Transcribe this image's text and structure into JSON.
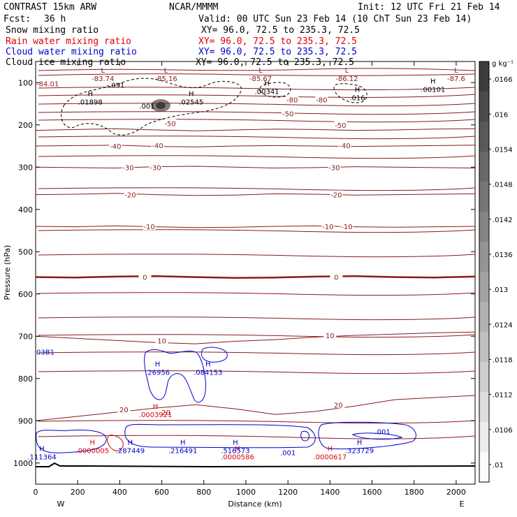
{
  "header": {
    "title": "CONTRAST 15km ARW",
    "source": "NCAR/MMMM",
    "init": "Init: 12 UTC Fri 21 Feb 14",
    "fcst_label": "Fcst:",
    "fcst_value": "36 h",
    "valid": "Valid: 00 UTC Sun 23 Feb 14 (10 ChT Sun 23 Feb 14)"
  },
  "fields": [
    {
      "name": "Snow mixing ratio",
      "xy": "XY=  96.0, 72.5 to 235.3, 72.5",
      "color": "#000000"
    },
    {
      "name": "Rain water mixing ratio",
      "xy": "XY=  96.0, 72.5 to 235.3, 72.5",
      "color": "#e00000"
    },
    {
      "name": "Cloud water mixing ratio",
      "xy": "XY=  96.0, 72.5 to 235.3, 72.5",
      "color": "#0000cc"
    },
    {
      "name": "Cloud ice mixing ratio",
      "xy": "XY=  96.0, 72.5 to 235.3, 72.5",
      "color": "#000000"
    }
  ],
  "colors": {
    "temperature": "#8b1a1a",
    "rain": "#e00000",
    "cloud": "#0000cc",
    "ice": "#000000"
  },
  "chart_data": {
    "type": "contour",
    "xlabel": "Distance (km)",
    "ylabel": "Pressure (hPa)",
    "xlim": [
      0,
      2090
    ],
    "ylim": [
      1050,
      50
    ],
    "x_ticks": [
      0,
      200,
      400,
      600,
      800,
      1000,
      1200,
      1400,
      1600,
      1800,
      2000
    ],
    "y_ticks": [
      100,
      200,
      300,
      400,
      500,
      600,
      700,
      800,
      900,
      1000
    ],
    "west_label": "W",
    "east_label": "E",
    "colorbar": {
      "units": "g kg⁻¹",
      "ticks": [
        0.01,
        0.0106,
        0.0112,
        0.0118,
        0.0124,
        0.013,
        0.0136,
        0.0142,
        0.0148,
        0.0154,
        0.016,
        0.0166
      ],
      "tick_labels": [
        ".01",
        ".0106",
        ".0112",
        ".0118",
        ".0124",
        ".013",
        ".0136",
        ".0142",
        ".0148",
        ".0154",
        ".016",
        ".0166"
      ],
      "min": 0.0097,
      "max": 0.0169
    },
    "temperature_contours": [
      {
        "label": "-50",
        "p": [
          213,
          211,
          209,
          212,
          214,
          212,
          210,
          211,
          213,
          212,
          210,
          209
        ]
      },
      {
        "label": "-40",
        "p": [
          250,
          249,
          248,
          251,
          252,
          250,
          249,
          250,
          251,
          250,
          249,
          248
        ]
      },
      {
        "label": "-30",
        "p": [
          300,
          301,
          302,
          299,
          298,
          300,
          302,
          301,
          299,
          300,
          301,
          302
        ]
      },
      {
        "label": "-20",
        "p": [
          365,
          364,
          362,
          365,
          367,
          366,
          363,
          364,
          366,
          365,
          364,
          363
        ]
      },
      {
        "label": "-10",
        "p": [
          440,
          441,
          439,
          441,
          443,
          442,
          440,
          439,
          441,
          442,
          441,
          440
        ]
      },
      {
        "label": "0",
        "p": [
          560,
          561,
          559,
          558,
          560,
          562,
          561,
          559,
          558,
          560,
          561,
          559
        ]
      },
      {
        "label": "10",
        "p": [
          700,
          705,
          710,
          715,
          718,
          712,
          708,
          702,
          698,
          695,
          692,
          690
        ]
      },
      {
        "label": "20",
        "p": [
          900,
          890,
          880,
          870,
          862,
          872,
          885,
          878,
          865,
          850,
          845,
          840
        ]
      }
    ],
    "temperature_labels": [
      {
        "x": 1200,
        "p": 173,
        "text": "-50"
      },
      {
        "x": 1220,
        "p": 140,
        "text": "-80"
      },
      {
        "x": 1360,
        "p": 140,
        "text": "-80"
      },
      {
        "x": 640,
        "p": 196,
        "text": "-50"
      },
      {
        "x": 1450,
        "p": 200,
        "text": "-50"
      },
      {
        "x": 380,
        "p": 250,
        "text": "-40"
      },
      {
        "x": 580,
        "p": 248,
        "text": "-40"
      },
      {
        "x": 1470,
        "p": 248,
        "text": "-40"
      },
      {
        "x": 440,
        "p": 300,
        "text": "-30"
      },
      {
        "x": 570,
        "p": 300,
        "text": "-30"
      },
      {
        "x": 1420,
        "p": 300,
        "text": "-30"
      },
      {
        "x": 450,
        "p": 365,
        "text": "-20"
      },
      {
        "x": 1430,
        "p": 365,
        "text": "-20"
      },
      {
        "x": 540,
        "p": 440,
        "text": "-10"
      },
      {
        "x": 1390,
        "p": 440,
        "text": "-10"
      },
      {
        "x": 1480,
        "p": 440,
        "text": "-10"
      },
      {
        "x": 520,
        "p": 560,
        "text": "0"
      },
      {
        "x": 1430,
        "p": 560,
        "text": "0"
      },
      {
        "x": 600,
        "p": 710,
        "text": "10"
      },
      {
        "x": 1400,
        "p": 698,
        "text": "10"
      },
      {
        "x": 420,
        "p": 873,
        "text": "20"
      },
      {
        "x": 620,
        "p": 880,
        "text": "20"
      },
      {
        "x": 1440,
        "p": 862,
        "text": "20"
      }
    ],
    "extrema": [
      {
        "type": "L",
        "x": 320,
        "p": 80,
        "value": "-83.74",
        "field": "temp"
      },
      {
        "type": "L",
        "x": 620,
        "p": 80,
        "value": "-85.16",
        "field": "temp"
      },
      {
        "type": "L",
        "x": 1070,
        "p": 80,
        "value": "-85.67",
        "field": "temp"
      },
      {
        "type": "L",
        "x": 1480,
        "p": 80,
        "value": "-86.12",
        "field": "temp"
      },
      {
        "type": "L",
        "x": 2000,
        "p": 80,
        "value": "-87.6",
        "field": "temp"
      },
      {
        "type": "H",
        "x": 260,
        "p": 135,
        "value": ".01898",
        "field": "ice"
      },
      {
        "type": "H",
        "x": 740,
        "p": 135,
        "value": ".02545",
        "field": "ice"
      },
      {
        "type": "H",
        "x": 1100,
        "p": 110,
        "value": ".00341",
        "field": "ice"
      },
      {
        "type": "H",
        "x": 1530,
        "p": 125,
        "value": ".016",
        "field": "ice"
      },
      {
        "type": "H",
        "x": 1890,
        "p": 105,
        "value": ".00101",
        "field": "ice"
      },
      {
        "type": "H",
        "x": 570,
        "p": 875,
        "value": ".0003921",
        "field": "rain"
      },
      {
        "type": "H",
        "x": 270,
        "p": 960,
        "value": ".0000005",
        "field": "rain"
      },
      {
        "type": "H",
        "x": 960,
        "p": 975,
        "value": ".0000586",
        "field": "rain"
      },
      {
        "type": "H",
        "x": 1400,
        "p": 975,
        "value": ".0000617",
        "field": "rain"
      },
      {
        "type": "H",
        "x": 580,
        "p": 775,
        "value": ".26956",
        "field": "cloud"
      },
      {
        "type": "H",
        "x": 820,
        "p": 775,
        "value": ".084153",
        "field": "cloud"
      },
      {
        "type": "H",
        "x": 30,
        "p": 975,
        "value": ".111364",
        "field": "cloud"
      },
      {
        "type": "H",
        "x": 450,
        "p": 960,
        "value": ".287449",
        "field": "cloud"
      },
      {
        "type": "H",
        "x": 700,
        "p": 960,
        "value": ".216491",
        "field": "cloud"
      },
      {
        "type": "H",
        "x": 950,
        "p": 960,
        "value": ".516573",
        "field": "cloud"
      },
      {
        "type": "H",
        "x": 1540,
        "p": 960,
        "value": ".323729",
        "field": "cloud"
      }
    ],
    "misc_labels": [
      {
        "x": 0,
        "p": 102,
        "text": "-84.01",
        "field": "temp"
      },
      {
        "x": 380,
        "p": 105,
        "text": "-.091",
        "field": "ice"
      },
      {
        "x": 530,
        "p": 155,
        "text": ".001",
        "field": "ice"
      },
      {
        "x": 0,
        "p": 737,
        "text": "03B1",
        "field": "cloud"
      },
      {
        "x": 1200,
        "p": 975,
        "text": ".001",
        "field": "cloud"
      },
      {
        "x": 1650,
        "p": 925,
        "text": ".001",
        "field": "cloud"
      }
    ]
  }
}
